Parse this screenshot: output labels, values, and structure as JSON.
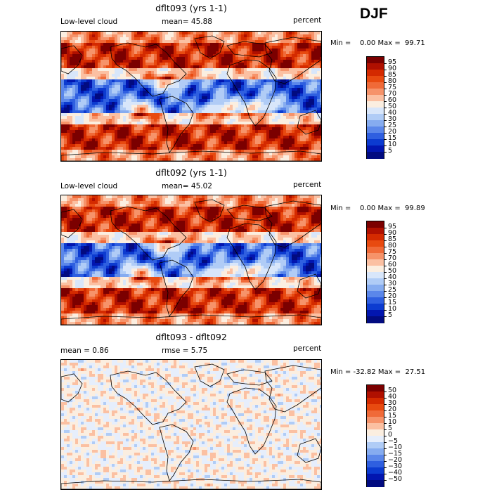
{
  "season": "DJF",
  "panels": [
    {
      "title": "dflt093 (yrs 1-1)",
      "left_label": "Low-level cloud",
      "mid_label": "mean=  45.88",
      "right_label": "percent",
      "minmax": "Min =    0.00 Max =  99.71",
      "colorbar_levels": [
        "95",
        "90",
        "85",
        "80",
        "75",
        "70",
        "60",
        "50",
        "40",
        "30",
        "25",
        "20",
        "15",
        "10",
        "5"
      ],
      "colors": [
        "#7b0000",
        "#b01000",
        "#d42a00",
        "#e84a10",
        "#f06a38",
        "#f6936a",
        "#fbc0a2",
        "#fbeee0",
        "#d8e6fa",
        "#b0ccf6",
        "#86acf0",
        "#5b87ea",
        "#2f5fe0",
        "#0c3bd0",
        "#0216b0",
        "#020b80"
      ]
    },
    {
      "title": "dflt092 (yrs 1-1)",
      "left_label": "Low-level cloud",
      "mid_label": "mean=  45.02",
      "right_label": "percent",
      "minmax": "Min =    0.00 Max =  99.89",
      "colorbar_levels": [
        "95",
        "90",
        "85",
        "80",
        "75",
        "70",
        "60",
        "50",
        "40",
        "30",
        "25",
        "20",
        "15",
        "10",
        "5"
      ],
      "colors": [
        "#7b0000",
        "#b01000",
        "#d42a00",
        "#e84a10",
        "#f06a38",
        "#f6936a",
        "#fbc0a2",
        "#fbeee0",
        "#d8e6fa",
        "#b0ccf6",
        "#86acf0",
        "#5b87ea",
        "#2f5fe0",
        "#0c3bd0",
        "#0216b0",
        "#020b80"
      ]
    },
    {
      "title": "dflt093 - dflt092",
      "left_label": "mean =    0.86",
      "mid_label": "rmse =   5.75",
      "right_label": "percent",
      "minmax": "Min = -32.82 Max =  27.51",
      "colorbar_levels": [
        "50",
        "40",
        "30",
        "20",
        "15",
        "10",
        "5",
        "0",
        "−5",
        "−10",
        "−15",
        "−20",
        "−30",
        "−40",
        "−50"
      ],
      "colors": [
        "#7b0000",
        "#b01000",
        "#d42a00",
        "#e84a10",
        "#f06a38",
        "#f6936a",
        "#fbc0a2",
        "#fbeee0",
        "#e6eefc",
        "#b0ccf6",
        "#86acf0",
        "#5b87ea",
        "#2f5fe0",
        "#0c3bd0",
        "#0216b0",
        "#020b80"
      ]
    }
  ]
}
